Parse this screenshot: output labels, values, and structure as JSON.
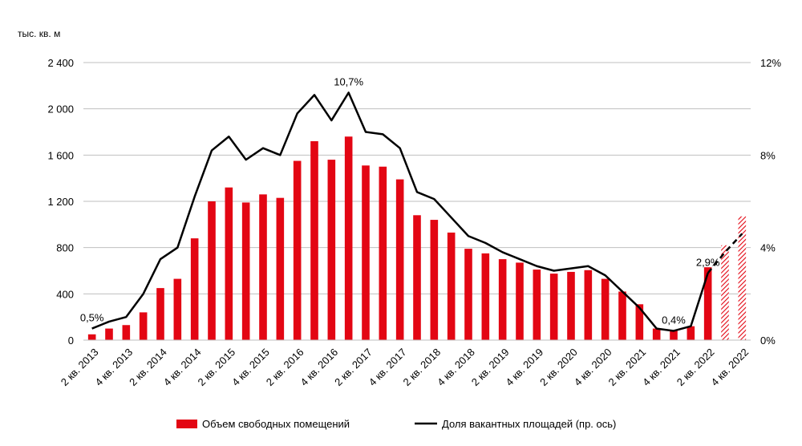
{
  "chart_data": {
    "type": "bar",
    "y_unit_label": "тыс. кв. м",
    "left_axis": {
      "min": 0,
      "max": 2400,
      "ticks": [
        "0",
        "400",
        "800",
        "1 200",
        "1 600",
        "2 000",
        "2 400"
      ],
      "tick_values": [
        0,
        400,
        800,
        1200,
        1600,
        2000,
        2400
      ]
    },
    "right_axis": {
      "min": 0,
      "max": 12,
      "ticks": [
        "0%",
        "4%",
        "8%",
        "12%"
      ],
      "tick_values": [
        0,
        4,
        8,
        12
      ]
    },
    "x_tick_labels": [
      "2 кв. 2013",
      "4 кв. 2013",
      "2 кв. 2014",
      "4 кв. 2014",
      "2 кв. 2015",
      "4 кв. 2015",
      "2 кв. 2016",
      "4 кв. 2016",
      "2 кв. 2017",
      "4 кв. 2017",
      "2 кв. 2018",
      "4 кв. 2018",
      "2 кв. 2019",
      "4 кв. 2019",
      "2 кв. 2020",
      "4 кв. 2020",
      "2 кв. 2021",
      "4 кв. 2021",
      "2 кв. 2022",
      "4 кв. 2022"
    ],
    "x_tick_every": 2,
    "grid": "horizontal",
    "legend_position": "bottom",
    "series": [
      {
        "name": "Объем свободных помещений",
        "type": "bar",
        "axis": "left",
        "color": "#e30613",
        "values": [
          50,
          100,
          130,
          240,
          450,
          530,
          880,
          1200,
          1320,
          1190,
          1260,
          1230,
          1550,
          1720,
          1560,
          1760,
          1510,
          1500,
          1390,
          1080,
          1040,
          930,
          790,
          750,
          700,
          670,
          610,
          575,
          590,
          605,
          530,
          420,
          310,
          100,
          80,
          120,
          630,
          820,
          1070
        ],
        "forecast_from_index": 37
      },
      {
        "name": "Доля вакантных площадей (пр. ось)",
        "type": "line",
        "axis": "right",
        "color": "#000000",
        "values": [
          0.5,
          0.8,
          1.0,
          2.0,
          3.5,
          4.0,
          6.2,
          8.2,
          8.8,
          7.8,
          8.3,
          8.0,
          9.8,
          10.6,
          9.5,
          10.7,
          9.0,
          8.9,
          8.3,
          6.4,
          6.1,
          5.3,
          4.5,
          4.2,
          3.8,
          3.5,
          3.2,
          3.0,
          3.1,
          3.2,
          2.8,
          2.1,
          1.4,
          0.5,
          0.4,
          0.6,
          2.9,
          3.8,
          4.6
        ],
        "forecast_from_index": 36
      }
    ],
    "annotations": [
      {
        "text": "0,5%",
        "index": 0,
        "value": 0.5
      },
      {
        "text": "10,7%",
        "index": 15,
        "value": 10.7
      },
      {
        "text": "0,4%",
        "index": 34,
        "value": 0.4
      },
      {
        "text": "2,9%",
        "index": 36,
        "value": 2.9
      }
    ]
  }
}
